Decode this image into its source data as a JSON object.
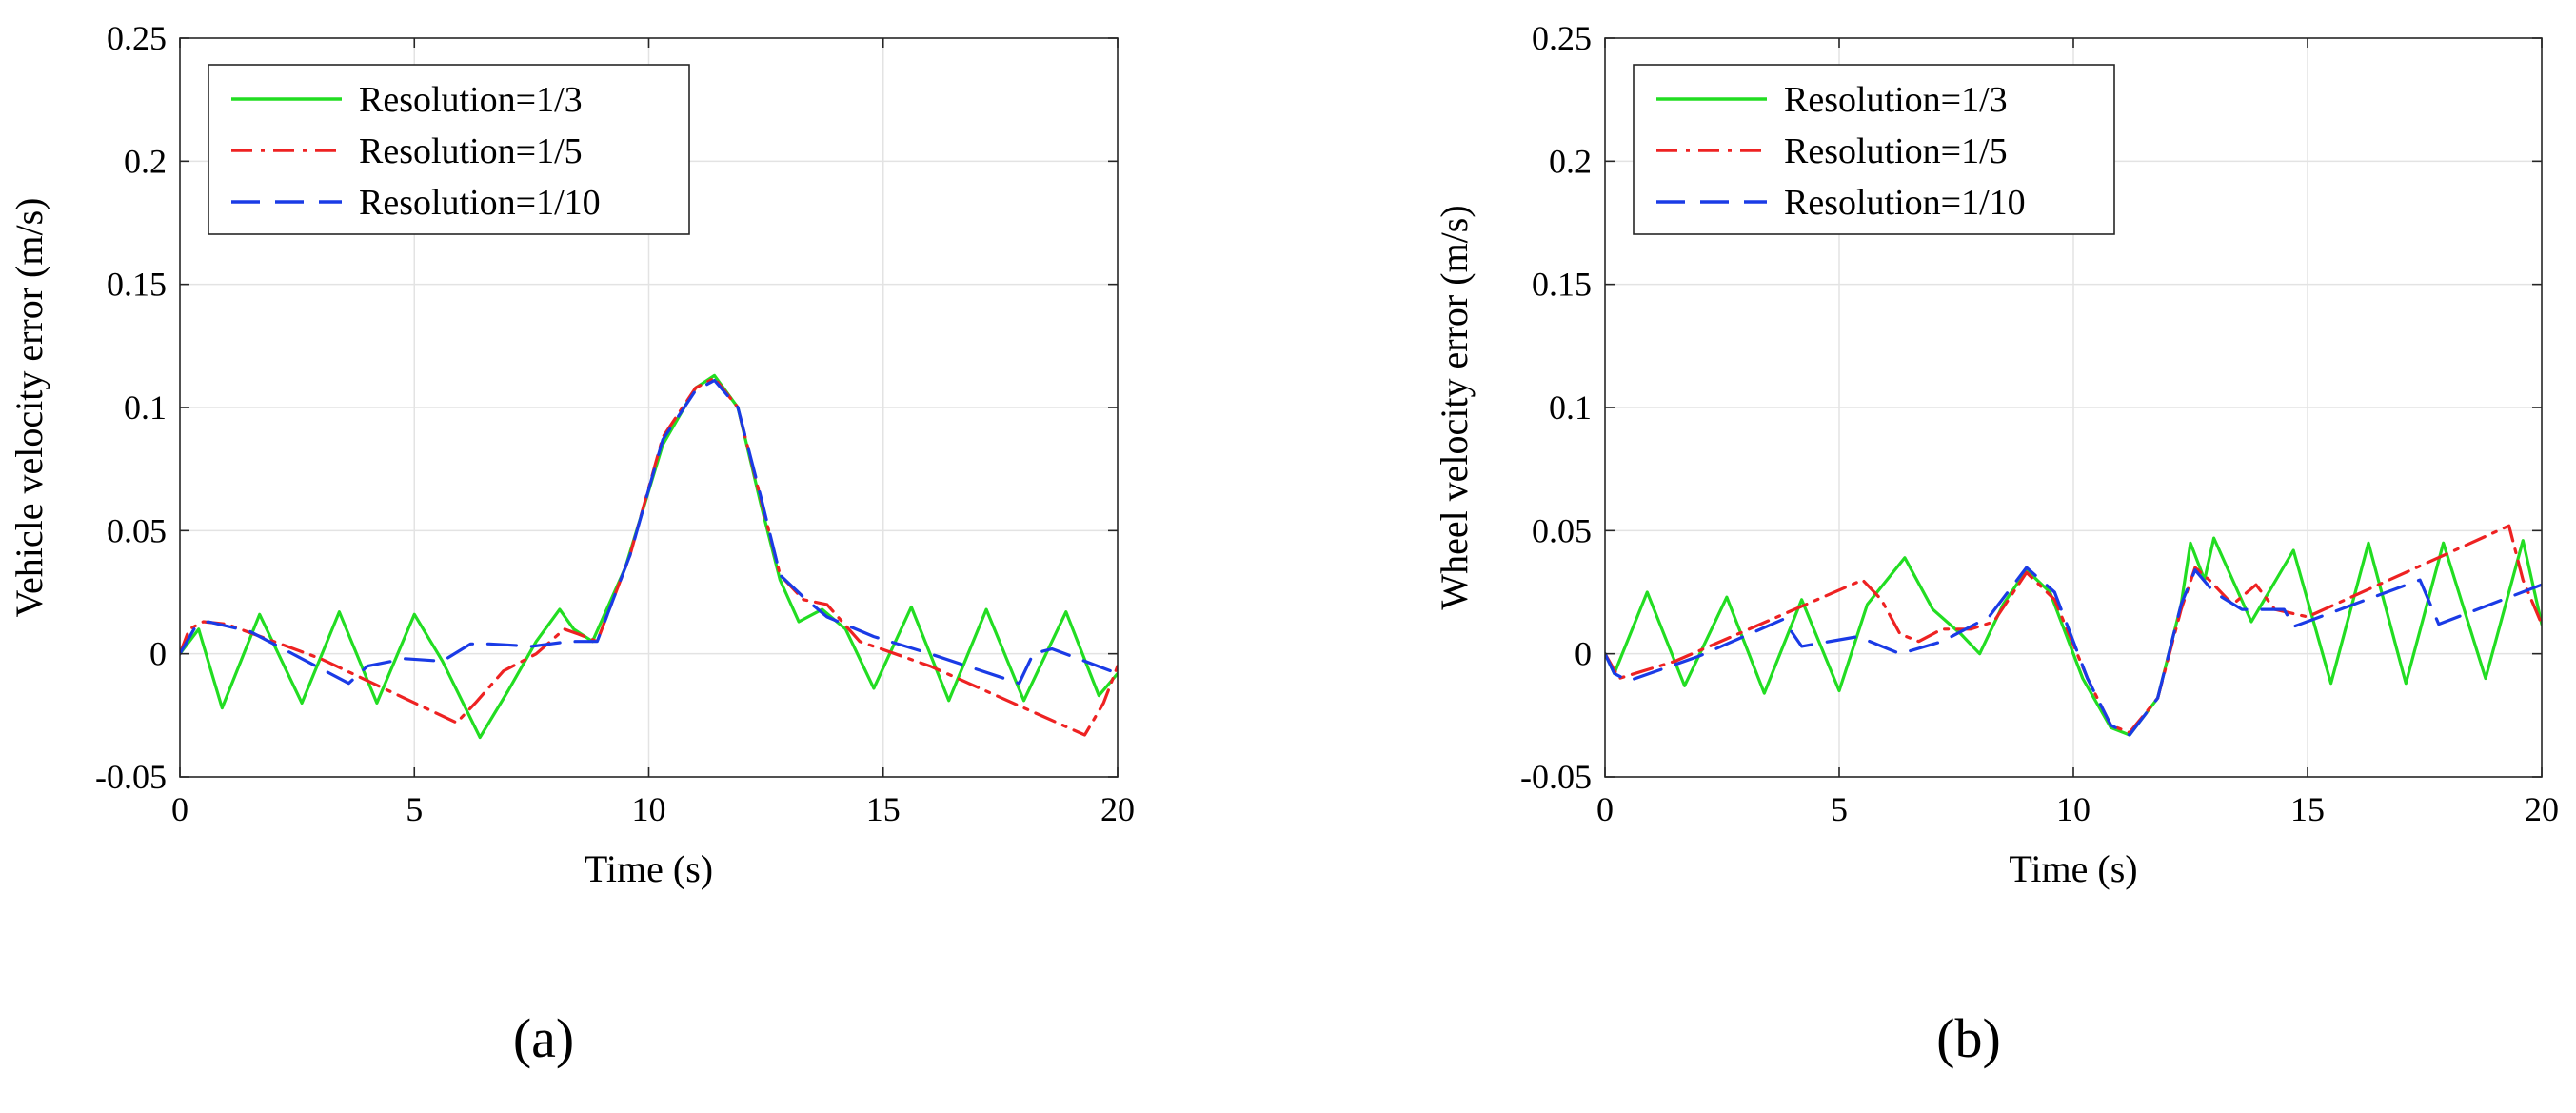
{
  "chart_data": [
    {
      "type": "line",
      "panel_label": "(a)",
      "xlabel": "Time (s)",
      "ylabel": "Vehicle velocity error (m/s)",
      "xlim": [
        0,
        20
      ],
      "ylim": [
        -0.05,
        0.25
      ],
      "xticks": [
        0,
        5,
        10,
        15,
        20
      ],
      "xtick_labels": [
        "0",
        "5",
        "10",
        "15",
        "20"
      ],
      "yticks": [
        -0.05,
        0,
        0.05,
        0.1,
        0.15,
        0.2,
        0.25
      ],
      "ytick_labels": [
        "-0.05",
        "0",
        "0.05",
        "0.1",
        "0.15",
        "0.2",
        "0.25"
      ],
      "grid": true,
      "legend_position": "top-left",
      "series": [
        {
          "name": "Resolution=1/3",
          "color": "#22dd22",
          "style": "solid",
          "points": [
            [
              0,
              0
            ],
            [
              0.4,
              0.01
            ],
            [
              0.9,
              -0.022
            ],
            [
              1.7,
              0.016
            ],
            [
              2.6,
              -0.02
            ],
            [
              3.4,
              0.017
            ],
            [
              4.2,
              -0.02
            ],
            [
              5.0,
              0.016
            ],
            [
              5.6,
              -0.003
            ],
            [
              6.4,
              -0.034
            ],
            [
              7.0,
              -0.015
            ],
            [
              7.6,
              0.005
            ],
            [
              8.1,
              0.018
            ],
            [
              8.4,
              0.01
            ],
            [
              8.8,
              0.005
            ],
            [
              9.5,
              0.035
            ],
            [
              10.3,
              0.085
            ],
            [
              11.0,
              0.108
            ],
            [
              11.4,
              0.113
            ],
            [
              11.9,
              0.1
            ],
            [
              12.4,
              0.06
            ],
            [
              12.8,
              0.03
            ],
            [
              13.2,
              0.013
            ],
            [
              13.7,
              0.018
            ],
            [
              14.2,
              0.01
            ],
            [
              14.8,
              -0.014
            ],
            [
              15.6,
              0.019
            ],
            [
              16.4,
              -0.019
            ],
            [
              17.2,
              0.018
            ],
            [
              18.0,
              -0.019
            ],
            [
              18.9,
              0.017
            ],
            [
              19.6,
              -0.017
            ],
            [
              20.0,
              -0.008
            ]
          ]
        },
        {
          "name": "Resolution=1/5",
          "color": "#ee2222",
          "style": "dashdot",
          "points": [
            [
              0,
              0
            ],
            [
              0.2,
              0.01
            ],
            [
              0.5,
              0.013
            ],
            [
              1.0,
              0.012
            ],
            [
              3.0,
              -0.002
            ],
            [
              5.9,
              -0.028
            ],
            [
              6.3,
              -0.02
            ],
            [
              6.9,
              -0.007
            ],
            [
              7.6,
              0.0
            ],
            [
              8.2,
              0.01
            ],
            [
              8.5,
              0.008
            ],
            [
              8.9,
              0.005
            ],
            [
              9.6,
              0.04
            ],
            [
              10.3,
              0.088
            ],
            [
              11.0,
              0.108
            ],
            [
              11.4,
              0.112
            ],
            [
              11.9,
              0.1
            ],
            [
              12.4,
              0.062
            ],
            [
              12.8,
              0.032
            ],
            [
              13.3,
              0.022
            ],
            [
              13.8,
              0.02
            ],
            [
              14.5,
              0.005
            ],
            [
              16.0,
              -0.005
            ],
            [
              19.3,
              -0.033
            ],
            [
              19.7,
              -0.02
            ],
            [
              20.0,
              -0.005
            ]
          ]
        },
        {
          "name": "Resolution=1/10",
          "color": "#1a3be6",
          "style": "dash",
          "points": [
            [
              0,
              0
            ],
            [
              0.3,
              0.01
            ],
            [
              0.6,
              0.013
            ],
            [
              1.5,
              0.009
            ],
            [
              3.6,
              -0.012
            ],
            [
              4.0,
              -0.005
            ],
            [
              4.8,
              -0.002
            ],
            [
              5.6,
              -0.003
            ],
            [
              6.2,
              0.004
            ],
            [
              6.6,
              0.004
            ],
            [
              7.5,
              0.003
            ],
            [
              8.3,
              0.005
            ],
            [
              8.9,
              0.005
            ],
            [
              9.6,
              0.04
            ],
            [
              10.3,
              0.087
            ],
            [
              11.0,
              0.107
            ],
            [
              11.4,
              0.111
            ],
            [
              11.9,
              0.1
            ],
            [
              12.4,
              0.063
            ],
            [
              12.8,
              0.032
            ],
            [
              13.3,
              0.023
            ],
            [
              13.8,
              0.015
            ],
            [
              14.8,
              0.007
            ],
            [
              16.0,
              0.0
            ],
            [
              17.9,
              -0.012
            ],
            [
              18.2,
              0.0
            ],
            [
              18.6,
              0.002
            ],
            [
              20.0,
              -0.008
            ]
          ]
        }
      ]
    },
    {
      "type": "line",
      "panel_label": "(b)",
      "xlabel": "Time (s)",
      "ylabel": "Wheel velocity error (m/s)",
      "xlim": [
        0,
        20
      ],
      "ylim": [
        -0.05,
        0.25
      ],
      "xticks": [
        0,
        5,
        10,
        15,
        20
      ],
      "xtick_labels": [
        "0",
        "5",
        "10",
        "15",
        "20"
      ],
      "yticks": [
        -0.05,
        0,
        0.05,
        0.1,
        0.15,
        0.2,
        0.25
      ],
      "ytick_labels": [
        "-0.05",
        "0",
        "0.05",
        "0.1",
        "0.15",
        "0.2",
        "0.25"
      ],
      "grid": true,
      "legend_position": "top-left",
      "series": [
        {
          "name": "Resolution=1/3",
          "color": "#22dd22",
          "style": "solid",
          "points": [
            [
              0,
              0
            ],
            [
              0.2,
              -0.008
            ],
            [
              0.9,
              0.025
            ],
            [
              1.7,
              -0.013
            ],
            [
              2.6,
              0.023
            ],
            [
              3.4,
              -0.016
            ],
            [
              4.2,
              0.022
            ],
            [
              5.0,
              -0.015
            ],
            [
              5.6,
              0.02
            ],
            [
              6.4,
              0.039
            ],
            [
              7.0,
              0.018
            ],
            [
              7.6,
              0.008
            ],
            [
              8.0,
              0.0
            ],
            [
              8.5,
              0.02
            ],
            [
              9.0,
              0.034
            ],
            [
              9.5,
              0.025
            ],
            [
              10.2,
              -0.01
            ],
            [
              10.8,
              -0.03
            ],
            [
              11.2,
              -0.033
            ],
            [
              11.8,
              -0.018
            ],
            [
              12.3,
              0.02
            ],
            [
              12.5,
              0.045
            ],
            [
              12.8,
              0.03
            ],
            [
              13.0,
              0.047
            ],
            [
              13.8,
              0.013
            ],
            [
              14.7,
              0.042
            ],
            [
              15.5,
              -0.012
            ],
            [
              16.3,
              0.045
            ],
            [
              17.1,
              -0.012
            ],
            [
              17.9,
              0.045
            ],
            [
              18.8,
              -0.01
            ],
            [
              19.6,
              0.046
            ],
            [
              20.0,
              0.012
            ]
          ]
        },
        {
          "name": "Resolution=1/5",
          "color": "#ee2222",
          "style": "dashdot",
          "points": [
            [
              0,
              0
            ],
            [
              0.3,
              -0.01
            ],
            [
              1.5,
              -0.003
            ],
            [
              5.5,
              0.03
            ],
            [
              5.9,
              0.022
            ],
            [
              6.3,
              0.008
            ],
            [
              6.7,
              0.005
            ],
            [
              7.2,
              0.01
            ],
            [
              7.8,
              0.01
            ],
            [
              8.3,
              0.013
            ],
            [
              9.0,
              0.033
            ],
            [
              9.6,
              0.022
            ],
            [
              10.3,
              -0.01
            ],
            [
              10.8,
              -0.029
            ],
            [
              11.2,
              -0.032
            ],
            [
              11.8,
              -0.018
            ],
            [
              12.3,
              0.018
            ],
            [
              12.6,
              0.035
            ],
            [
              12.9,
              0.03
            ],
            [
              13.4,
              0.02
            ],
            [
              13.9,
              0.028
            ],
            [
              14.3,
              0.018
            ],
            [
              15.0,
              0.015
            ],
            [
              19.3,
              0.052
            ],
            [
              19.6,
              0.03
            ],
            [
              20.0,
              0.012
            ]
          ]
        },
        {
          "name": "Resolution=1/10",
          "color": "#1a3be6",
          "style": "dash",
          "points": [
            [
              0,
              0
            ],
            [
              0.2,
              -0.008
            ],
            [
              0.5,
              -0.011
            ],
            [
              2.0,
              -0.001
            ],
            [
              3.8,
              0.014
            ],
            [
              4.2,
              0.003
            ],
            [
              5.4,
              0.007
            ],
            [
              6.3,
              0.0
            ],
            [
              7.2,
              0.005
            ],
            [
              8.2,
              0.015
            ],
            [
              9.0,
              0.035
            ],
            [
              9.6,
              0.025
            ],
            [
              10.3,
              -0.01
            ],
            [
              10.8,
              -0.029
            ],
            [
              11.2,
              -0.033
            ],
            [
              11.8,
              -0.018
            ],
            [
              12.3,
              0.02
            ],
            [
              12.6,
              0.034
            ],
            [
              13.0,
              0.025
            ],
            [
              13.6,
              0.018
            ],
            [
              14.5,
              0.018
            ],
            [
              14.7,
              0.011
            ],
            [
              17.4,
              0.03
            ],
            [
              17.8,
              0.012
            ],
            [
              20.0,
              0.028
            ]
          ]
        }
      ]
    }
  ]
}
